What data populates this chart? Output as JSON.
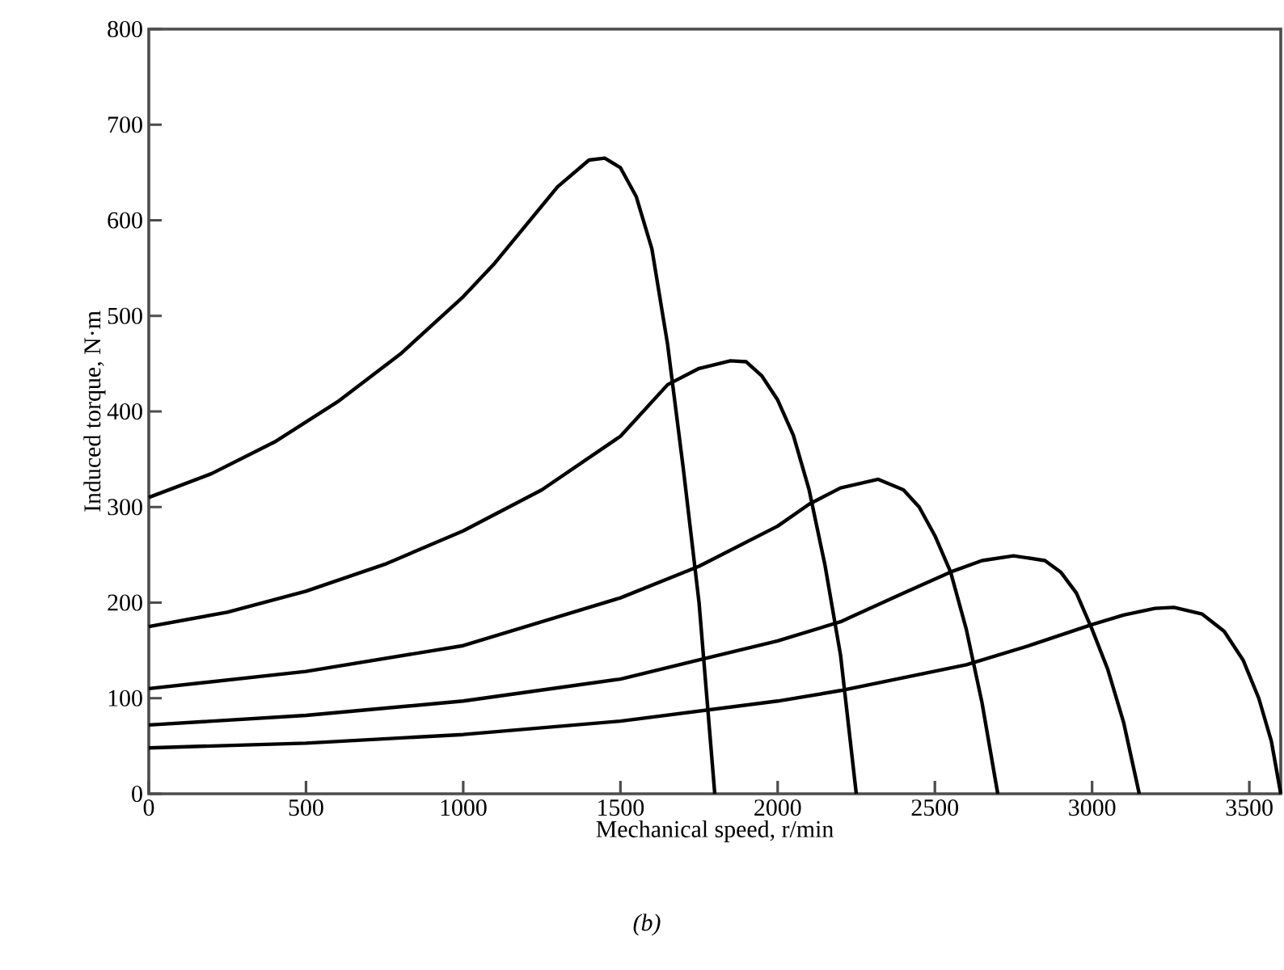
{
  "chart_data": {
    "type": "line",
    "xlabel": "Mechanical speed, r/min",
    "ylabel": "Induced torque, N·m",
    "annotations": [
      "*(b)*"
    ],
    "xlim": [
      0,
      3600
    ],
    "ylim": [
      0,
      800
    ],
    "xticks": [
      0,
      500,
      1000,
      1500,
      2000,
      2500,
      3000,
      3500
    ],
    "yticks": [
      0,
      100,
      200,
      300,
      400,
      500,
      600,
      700,
      800
    ],
    "grid": false,
    "series": [
      {
        "color": "#000000",
        "x": [
          0,
          200,
          400,
          600,
          800,
          1000,
          1100,
          1200,
          1300,
          1400,
          1450,
          1500,
          1550,
          1600,
          1650,
          1700,
          1750,
          1800
        ],
        "values": [
          310,
          335,
          368,
          410,
          460,
          520,
          555,
          595,
          635,
          663,
          665,
          655,
          625,
          570,
          470,
          340,
          200,
          0
        ]
      },
      {
        "color": "#000000",
        "x": [
          0,
          250,
          500,
          750,
          1000,
          1250,
          1500,
          1650,
          1750,
          1850,
          1900,
          1950,
          2000,
          2050,
          2100,
          2150,
          2200,
          2250
        ],
        "values": [
          175,
          190,
          212,
          240,
          275,
          318,
          374,
          428,
          445,
          453,
          452,
          437,
          412,
          375,
          318,
          240,
          145,
          0
        ]
      },
      {
        "color": "#000000",
        "x": [
          0,
          500,
          1000,
          1500,
          1750,
          2000,
          2100,
          2200,
          2320,
          2400,
          2450,
          2500,
          2550,
          2600,
          2650,
          2700
        ],
        "values": [
          110,
          128,
          155,
          205,
          238,
          280,
          303,
          320,
          329,
          318,
          300,
          270,
          232,
          172,
          95,
          0
        ]
      },
      {
        "color": "#000000",
        "x": [
          0,
          500,
          1000,
          1500,
          1750,
          2000,
          2200,
          2400,
          2550,
          2650,
          2750,
          2850,
          2900,
          2950,
          3000,
          3050,
          3100,
          3150
        ],
        "values": [
          72,
          82,
          97,
          120,
          140,
          160,
          180,
          210,
          232,
          244,
          249,
          244,
          232,
          210,
          172,
          130,
          75,
          0
        ]
      },
      {
        "color": "#000000",
        "x": [
          0,
          500,
          1000,
          1500,
          2000,
          2200,
          2600,
          2800,
          3000,
          3100,
          3200,
          3260,
          3350,
          3420,
          3480,
          3530,
          3570,
          3600
        ],
        "values": [
          48,
          53,
          62,
          76,
          97,
          108,
          135,
          155,
          177,
          187,
          194,
          195,
          188,
          170,
          140,
          100,
          55,
          0
        ]
      }
    ]
  }
}
